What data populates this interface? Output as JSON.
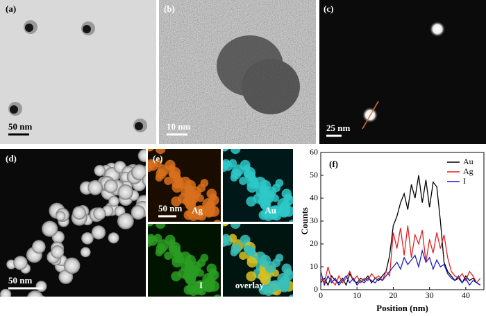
{
  "panels": [
    {
      "label": "(a)",
      "scale_bar": "50 nm"
    },
    {
      "label": "(b)",
      "scale_bar": "10 nm"
    },
    {
      "label": "(c)",
      "scale_bar": "25 nm"
    },
    {
      "label": "(d)",
      "scale_bar": "50 nm"
    },
    {
      "label": "(e)",
      "scale_bar": "50 nm",
      "maps": [
        "Ag",
        "Au",
        "I",
        "overlay"
      ]
    }
  ],
  "chart_data": {
    "type": "line",
    "title": "(f)",
    "x_label": "Position (nm)",
    "y_label": "Counts",
    "x": [
      0,
      1,
      2,
      3,
      4,
      5,
      6,
      7,
      8,
      9,
      10,
      11,
      12,
      13,
      14,
      15,
      16,
      17,
      18,
      19,
      20,
      21,
      22,
      23,
      24,
      25,
      26,
      27,
      28,
      29,
      30,
      31,
      32,
      33,
      34,
      35,
      36,
      37,
      38,
      39,
      40,
      41,
      42,
      43,
      44
    ],
    "series": [
      {
        "name": "Au",
        "color": "#000000",
        "values": [
          3,
          5,
          2,
          6,
          4,
          3,
          5,
          2,
          7,
          4,
          3,
          5,
          4,
          6,
          3,
          5,
          4,
          6,
          8,
          15,
          28,
          32,
          38,
          42,
          35,
          46,
          40,
          50,
          38,
          48,
          36,
          47,
          45,
          30,
          12,
          8,
          6,
          4,
          5,
          3,
          6,
          4,
          5,
          3,
          2
        ]
      },
      {
        "name": "Ag",
        "color": "#e02020",
        "values": [
          5,
          3,
          10,
          4,
          2,
          6,
          3,
          5,
          8,
          4,
          6,
          3,
          5,
          4,
          7,
          5,
          6,
          4,
          8,
          6,
          25,
          18,
          27,
          15,
          28,
          14,
          24,
          20,
          26,
          12,
          22,
          16,
          25,
          18,
          24,
          14,
          8,
          6,
          5,
          7,
          4,
          8,
          6,
          3,
          5
        ]
      },
      {
        "name": "I",
        "color": "#1a1acc",
        "values": [
          8,
          2,
          6,
          3,
          5,
          2,
          4,
          6,
          3,
          5,
          2,
          4,
          3,
          5,
          4,
          3,
          5,
          4,
          6,
          8,
          10,
          12,
          9,
          14,
          11,
          13,
          15,
          10,
          17,
          12,
          14,
          9,
          13,
          10,
          11,
          7,
          5,
          4,
          6,
          3,
          5,
          2,
          4,
          3,
          2
        ]
      }
    ],
    "xlim": [
      0,
      45
    ],
    "xticks": [
      0,
      10,
      20,
      30,
      40
    ],
    "ylim": [
      0,
      60
    ],
    "yticks": [
      0,
      10,
      20,
      30,
      40,
      50,
      60
    ],
    "legend": "upper right"
  }
}
